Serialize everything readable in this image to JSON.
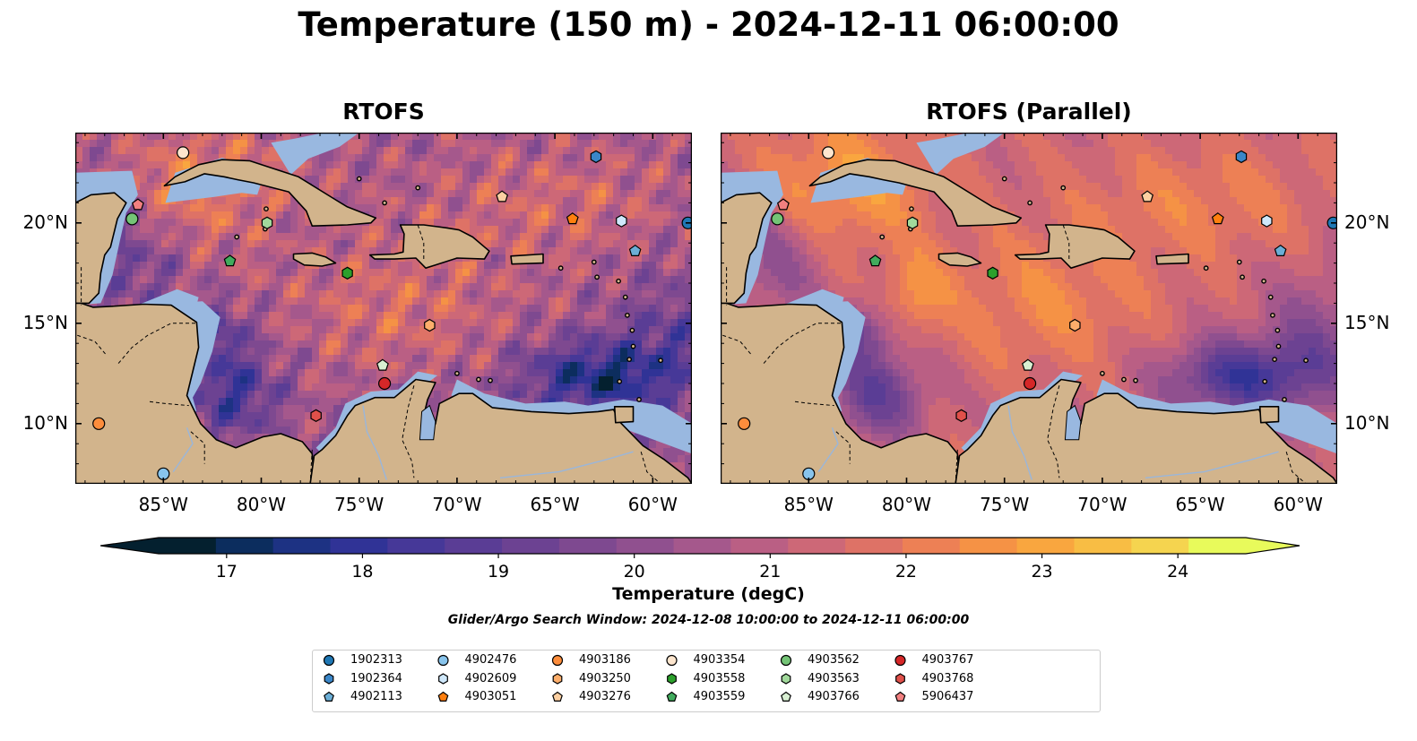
{
  "figure": {
    "title": "Temperature (150 m) - 2024-12-11 06:00:00",
    "panels": [
      {
        "title": "RTOFS"
      },
      {
        "title": "RTOFS (Parallel)"
      }
    ],
    "map_extent": {
      "lon": [
        -89.5,
        -58.0
      ],
      "lat": [
        7.0,
        24.5
      ]
    },
    "lon_ticks": [
      {
        "value": -85,
        "label": "85°W"
      },
      {
        "value": -80,
        "label": "80°W"
      },
      {
        "value": -75,
        "label": "75°W"
      },
      {
        "value": -70,
        "label": "70°W"
      },
      {
        "value": -65,
        "label": "65°W"
      },
      {
        "value": -60,
        "label": "60°W"
      }
    ],
    "lat_ticks": [
      {
        "value": 20,
        "label": "20°N"
      },
      {
        "value": 15,
        "label": "15°N"
      },
      {
        "value": 10,
        "label": "10°N"
      }
    ],
    "colors": {
      "land": "#d2b48c",
      "shelf_water": "#99b8e0",
      "coastline": "#000000",
      "borders": "#000000"
    },
    "colorbar": {
      "label": "Temperature (degC)",
      "min": 16.5,
      "max": 24.5,
      "step": 0.5,
      "extend": "both",
      "ticks": [
        "17",
        "18",
        "19",
        "20",
        "21",
        "22",
        "23",
        "24"
      ],
      "colors": [
        "#04202f",
        "#0c2d5e",
        "#1d3283",
        "#303396",
        "#463898",
        "#5a3d95",
        "#6c4292",
        "#7e4990",
        "#90508f",
        "#a5588c",
        "#ba5f84",
        "#cd6877",
        "#de7266",
        "#ed8055",
        "#f59245",
        "#f9a63f",
        "#f8bd44",
        "#f5d44f",
        "#e8fa5b"
      ],
      "under_color": "#04202f",
      "over_color": "#e8fa5b"
    },
    "search_window": "Glider/Argo Search Window: 2024-12-08 10:00:00 to 2024-12-11 06:00:00",
    "platforms": [
      {
        "id": "1902313",
        "marker": "circle",
        "color": "#1f77b4",
        "lon": -58.2,
        "lat": 20.0
      },
      {
        "id": "1902364",
        "marker": "hexagon",
        "color": "#3a86c8",
        "lon": -62.9,
        "lat": 23.3
      },
      {
        "id": "4902113",
        "marker": "pentagon",
        "color": "#6baed6",
        "lon": -60.9,
        "lat": 18.6
      },
      {
        "id": "4902476",
        "marker": "circle",
        "color": "#88c4ec",
        "lon": -85.0,
        "lat": 7.5
      },
      {
        "id": "4902609",
        "marker": "hexagon",
        "color": "#cfe8fb",
        "lon": -61.6,
        "lat": 20.1
      },
      {
        "id": "4903051",
        "marker": "pentagon",
        "color": "#ff7f0e",
        "lon": -64.1,
        "lat": 20.2
      },
      {
        "id": "4903186",
        "marker": "circle",
        "color": "#fd8d3c",
        "lon": -88.3,
        "lat": 10.0
      },
      {
        "id": "4903250",
        "marker": "hexagon",
        "color": "#fdae6b",
        "lon": -71.4,
        "lat": 14.9
      },
      {
        "id": "4903276",
        "marker": "pentagon",
        "color": "#fdd0a2",
        "lon": -67.7,
        "lat": 21.3
      },
      {
        "id": "4903354",
        "marker": "circle",
        "color": "#fee6ce",
        "lon": -84.0,
        "lat": 23.5
      },
      {
        "id": "4903558",
        "marker": "hexagon",
        "color": "#2ca02c",
        "lon": -75.6,
        "lat": 17.5
      },
      {
        "id": "4903559",
        "marker": "pentagon",
        "color": "#41ab5d",
        "lon": -81.6,
        "lat": 18.1
      },
      {
        "id": "4903562",
        "marker": "circle",
        "color": "#74c476",
        "lon": -86.6,
        "lat": 20.2
      },
      {
        "id": "4903563",
        "marker": "hexagon",
        "color": "#a1d99b",
        "lon": -79.7,
        "lat": 20.0
      },
      {
        "id": "4903766",
        "marker": "pentagon",
        "color": "#d9f0d3",
        "lon": -73.8,
        "lat": 12.9
      },
      {
        "id": "4903767",
        "marker": "circle",
        "color": "#d62728",
        "lon": -73.7,
        "lat": 12.0
      },
      {
        "id": "4903768",
        "marker": "hexagon",
        "color": "#e0504a",
        "lon": -77.2,
        "lat": 10.4
      },
      {
        "id": "5906437",
        "marker": "pentagon",
        "color": "#f28080",
        "lon": -86.3,
        "lat": 20.9
      }
    ]
  }
}
